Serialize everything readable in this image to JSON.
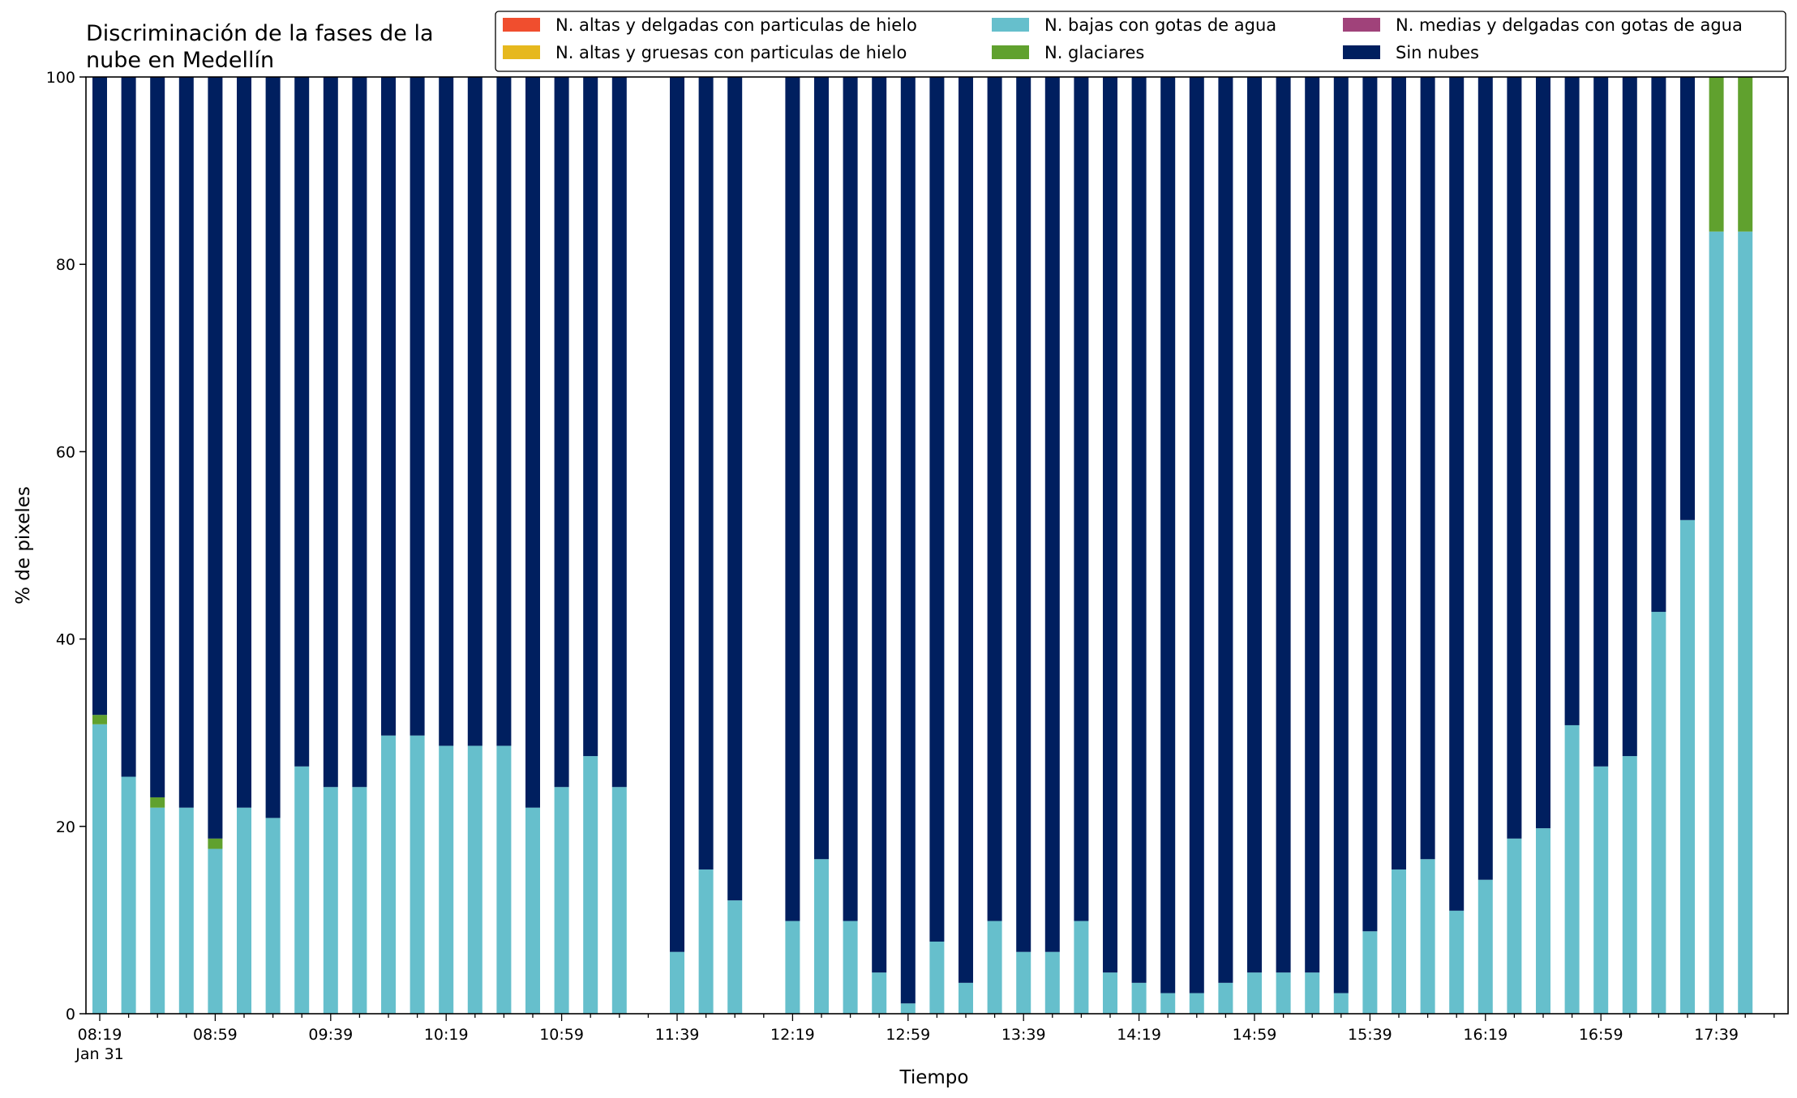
{
  "chart_data": {
    "type": "bar",
    "stacked": true,
    "title": "Discriminación de la fases de la\nnube en Medellín",
    "xlabel": "Tiempo",
    "ylabel": "% de pixeles",
    "ylim": [
      0,
      100
    ],
    "yticks": [
      0,
      20,
      40,
      60,
      80,
      100
    ],
    "grid": false,
    "legend_position": "top-right",
    "time_start": "08:19",
    "time_step_minutes": 10,
    "xtick_labels": [
      "08:19\nJan 31",
      "08:59",
      "09:39",
      "10:19",
      "10:59",
      "11:39",
      "12:19",
      "12:59",
      "13:39",
      "14:19",
      "14:59",
      "15:39",
      "16:19",
      "16:59",
      "17:39"
    ],
    "categories": [
      "08:19",
      "08:29",
      "08:39",
      "08:49",
      "08:59",
      "09:09",
      "09:19",
      "09:29",
      "09:39",
      "09:49",
      "09:59",
      "10:09",
      "10:19",
      "10:29",
      "10:39",
      "10:49",
      "10:59",
      "11:09",
      "11:19",
      "11:29",
      "11:39",
      "11:49",
      "11:59",
      "12:09",
      "12:19",
      "12:29",
      "12:39",
      "12:49",
      "12:59",
      "13:09",
      "13:19",
      "13:29",
      "13:39",
      "13:49",
      "13:59",
      "14:09",
      "14:19",
      "14:29",
      "14:39",
      "14:49",
      "14:59",
      "15:09",
      "15:19",
      "15:29",
      "15:39",
      "15:49",
      "15:59",
      "16:09",
      "16:19",
      "16:29",
      "16:39",
      "16:49",
      "16:59",
      "17:09",
      "17:19",
      "17:29",
      "17:39",
      "17:49"
    ],
    "series": [
      {
        "name": "N. altas y delgadas con particulas de hielo",
        "color": "#f04e2e",
        "values": [
          0,
          0,
          0,
          0,
          0,
          0,
          0,
          0,
          0,
          0,
          0,
          0,
          0,
          0,
          0,
          0,
          0,
          0,
          0,
          0,
          0,
          0,
          0,
          0,
          0,
          0,
          0,
          0,
          0,
          0,
          0,
          0,
          0,
          0,
          0,
          0,
          0,
          0,
          0,
          0,
          0,
          0,
          0,
          0,
          0,
          0,
          0,
          0,
          0,
          0,
          0,
          0,
          0,
          0,
          0,
          0,
          0,
          0
        ]
      },
      {
        "name": "N. altas y gruesas con particulas de hielo",
        "color": "#e6b81e",
        "values": [
          0,
          0,
          0,
          0,
          0,
          0,
          0,
          0,
          0,
          0,
          0,
          0,
          0,
          0,
          0,
          0,
          0,
          0,
          0,
          0,
          0,
          0,
          0,
          0,
          0,
          0,
          0,
          0,
          0,
          0,
          0,
          0,
          0,
          0,
          0,
          0,
          0,
          0,
          0,
          0,
          0,
          0,
          0,
          0,
          0,
          0,
          0,
          0,
          0,
          0,
          0,
          0,
          0,
          0,
          0,
          0,
          0,
          0
        ]
      },
      {
        "name": "N. bajas con gotas de agua",
        "color": "#66bfcc",
        "values": [
          30.9,
          25.3,
          22.0,
          22.0,
          17.6,
          22.0,
          20.9,
          26.4,
          24.2,
          24.2,
          29.7,
          29.7,
          28.6,
          28.6,
          28.6,
          22.0,
          24.2,
          27.5,
          24.2,
          null,
          6.6,
          15.4,
          12.1,
          null,
          9.9,
          16.5,
          9.9,
          4.4,
          1.1,
          7.7,
          3.3,
          9.9,
          6.6,
          6.6,
          9.9,
          4.4,
          3.3,
          2.2,
          2.2,
          3.3,
          4.4,
          4.4,
          4.4,
          2.2,
          8.8,
          15.4,
          16.5,
          11.0,
          14.3,
          18.7,
          19.8,
          30.8,
          26.4,
          27.5,
          42.9,
          52.7,
          83.5,
          83.5
        ]
      },
      {
        "name": "N. glaciares",
        "color": "#60a12e",
        "values": [
          1.0,
          0,
          1.1,
          0,
          1.1,
          0,
          0,
          0,
          0,
          0,
          0,
          0,
          0,
          0,
          0,
          0,
          0,
          0,
          0,
          null,
          0,
          0,
          0,
          null,
          0,
          0,
          0,
          0,
          0,
          0,
          0,
          0,
          0,
          0,
          0,
          0,
          0,
          0,
          0,
          0,
          0,
          0,
          0,
          0,
          0,
          0,
          0,
          0,
          0,
          0,
          0,
          0,
          0,
          0,
          0,
          0,
          16.5,
          16.5
        ]
      },
      {
        "name": "N. medias y delgadas con gotas de agua",
        "color": "#a0427a",
        "values": [
          0,
          0,
          0,
          0,
          0,
          0,
          0,
          0,
          0,
          0,
          0,
          0,
          0,
          0,
          0,
          0,
          0,
          0,
          0,
          0,
          0,
          0,
          0,
          0,
          0,
          0,
          0,
          0,
          0,
          0,
          0,
          0,
          0,
          0,
          0,
          0,
          0,
          0,
          0,
          0,
          0,
          0,
          0,
          0,
          0,
          0,
          0,
          0,
          0,
          0,
          0,
          0,
          0,
          0,
          0,
          0,
          0,
          0
        ]
      },
      {
        "name": "Sin nubes",
        "color": "#001f5f",
        "values": [
          68.1,
          74.7,
          76.9,
          78.0,
          81.3,
          78.0,
          79.1,
          73.6,
          75.8,
          75.8,
          70.3,
          70.3,
          71.4,
          71.4,
          71.4,
          78.0,
          75.8,
          72.5,
          75.8,
          null,
          93.4,
          84.6,
          87.9,
          null,
          90.1,
          83.5,
          90.1,
          95.6,
          98.9,
          92.3,
          96.7,
          90.1,
          93.4,
          93.4,
          90.1,
          95.6,
          96.7,
          97.8,
          97.8,
          96.7,
          95.6,
          95.6,
          95.6,
          97.8,
          91.2,
          84.6,
          83.5,
          89.0,
          85.7,
          81.3,
          80.2,
          69.2,
          73.6,
          72.5,
          57.1,
          47.3,
          0,
          0
        ]
      }
    ]
  }
}
